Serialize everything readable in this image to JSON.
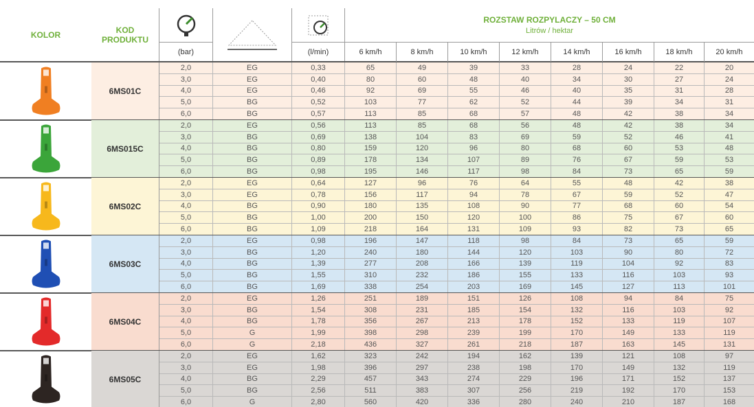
{
  "header": {
    "kolor": "KOLOR",
    "kod": "KOD PRODUKTU",
    "bar": "(bar)",
    "lmin": "(l/min)",
    "spacing_title": "ROZSTAW ROZPYLACZY – 50 CM",
    "spacing_unit": "Litrów / hektar",
    "speeds": [
      "6 km/h",
      "8 km/h",
      "10 km/h",
      "12 km/h",
      "14 km/h",
      "16 km/h",
      "18 km/h",
      "20 km/h"
    ]
  },
  "groups": [
    {
      "code": "6MS01C",
      "rows": [
        [
          "2,0",
          "EG",
          "0,33",
          "65",
          "49",
          "39",
          "33",
          "28",
          "24",
          "22",
          "20"
        ],
        [
          "3,0",
          "EG",
          "0,40",
          "80",
          "60",
          "48",
          "40",
          "34",
          "30",
          "27",
          "24"
        ],
        [
          "4,0",
          "EG",
          "0,46",
          "92",
          "69",
          "55",
          "46",
          "40",
          "35",
          "31",
          "28"
        ],
        [
          "5,0",
          "BG",
          "0,52",
          "103",
          "77",
          "62",
          "52",
          "44",
          "39",
          "34",
          "31"
        ],
        [
          "6,0",
          "BG",
          "0,57",
          "113",
          "85",
          "68",
          "57",
          "48",
          "42",
          "38",
          "34"
        ]
      ]
    },
    {
      "code": "6MS015C",
      "rows": [
        [
          "2,0",
          "EG",
          "0,56",
          "113",
          "85",
          "68",
          "56",
          "48",
          "42",
          "38",
          "34"
        ],
        [
          "3,0",
          "BG",
          "0,69",
          "138",
          "104",
          "83",
          "69",
          "59",
          "52",
          "46",
          "41"
        ],
        [
          "4,0",
          "BG",
          "0,80",
          "159",
          "120",
          "96",
          "80",
          "68",
          "60",
          "53",
          "48"
        ],
        [
          "5,0",
          "BG",
          "0,89",
          "178",
          "134",
          "107",
          "89",
          "76",
          "67",
          "59",
          "53"
        ],
        [
          "6,0",
          "BG",
          "0,98",
          "195",
          "146",
          "117",
          "98",
          "84",
          "73",
          "65",
          "59"
        ]
      ]
    },
    {
      "code": "6MS02C",
      "rows": [
        [
          "2,0",
          "EG",
          "0,64",
          "127",
          "96",
          "76",
          "64",
          "55",
          "48",
          "42",
          "38"
        ],
        [
          "3,0",
          "EG",
          "0,78",
          "156",
          "117",
          "94",
          "78",
          "67",
          "59",
          "52",
          "47"
        ],
        [
          "4,0",
          "BG",
          "0,90",
          "180",
          "135",
          "108",
          "90",
          "77",
          "68",
          "60",
          "54"
        ],
        [
          "5,0",
          "BG",
          "1,00",
          "200",
          "150",
          "120",
          "100",
          "86",
          "75",
          "67",
          "60"
        ],
        [
          "6,0",
          "BG",
          "1,09",
          "218",
          "164",
          "131",
          "109",
          "93",
          "82",
          "73",
          "65"
        ]
      ]
    },
    {
      "code": "6MS03C",
      "rows": [
        [
          "2,0",
          "EG",
          "0,98",
          "196",
          "147",
          "118",
          "98",
          "84",
          "73",
          "65",
          "59"
        ],
        [
          "3,0",
          "BG",
          "1,20",
          "240",
          "180",
          "144",
          "120",
          "103",
          "90",
          "80",
          "72"
        ],
        [
          "4,0",
          "BG",
          "1,39",
          "277",
          "208",
          "166",
          "139",
          "119",
          "104",
          "92",
          "83"
        ],
        [
          "5,0",
          "BG",
          "1,55",
          "310",
          "232",
          "186",
          "155",
          "133",
          "116",
          "103",
          "93"
        ],
        [
          "6,0",
          "BG",
          "1,69",
          "338",
          "254",
          "203",
          "169",
          "145",
          "127",
          "113",
          "101"
        ]
      ]
    },
    {
      "code": "6MS04C",
      "rows": [
        [
          "2,0",
          "EG",
          "1,26",
          "251",
          "189",
          "151",
          "126",
          "108",
          "94",
          "84",
          "75"
        ],
        [
          "3,0",
          "BG",
          "1,54",
          "308",
          "231",
          "185",
          "154",
          "132",
          "116",
          "103",
          "92"
        ],
        [
          "4,0",
          "BG",
          "1,78",
          "356",
          "267",
          "213",
          "178",
          "152",
          "133",
          "119",
          "107"
        ],
        [
          "5,0",
          "G",
          "1,99",
          "398",
          "298",
          "239",
          "199",
          "170",
          "149",
          "133",
          "119"
        ],
        [
          "6,0",
          "G",
          "2,18",
          "436",
          "327",
          "261",
          "218",
          "187",
          "163",
          "145",
          "131"
        ]
      ]
    },
    {
      "code": "6MS05C",
      "rows": [
        [
          "2,0",
          "EG",
          "1,62",
          "323",
          "242",
          "194",
          "162",
          "139",
          "121",
          "108",
          "97"
        ],
        [
          "3,0",
          "EG",
          "1,98",
          "396",
          "297",
          "238",
          "198",
          "170",
          "149",
          "132",
          "119"
        ],
        [
          "4,0",
          "BG",
          "2,29",
          "457",
          "343",
          "274",
          "229",
          "196",
          "171",
          "152",
          "137"
        ],
        [
          "5,0",
          "BG",
          "2,56",
          "511",
          "383",
          "307",
          "256",
          "219",
          "192",
          "170",
          "153"
        ],
        [
          "6,0",
          "G",
          "2,80",
          "560",
          "420",
          "336",
          "280",
          "240",
          "210",
          "187",
          "168"
        ]
      ]
    }
  ]
}
